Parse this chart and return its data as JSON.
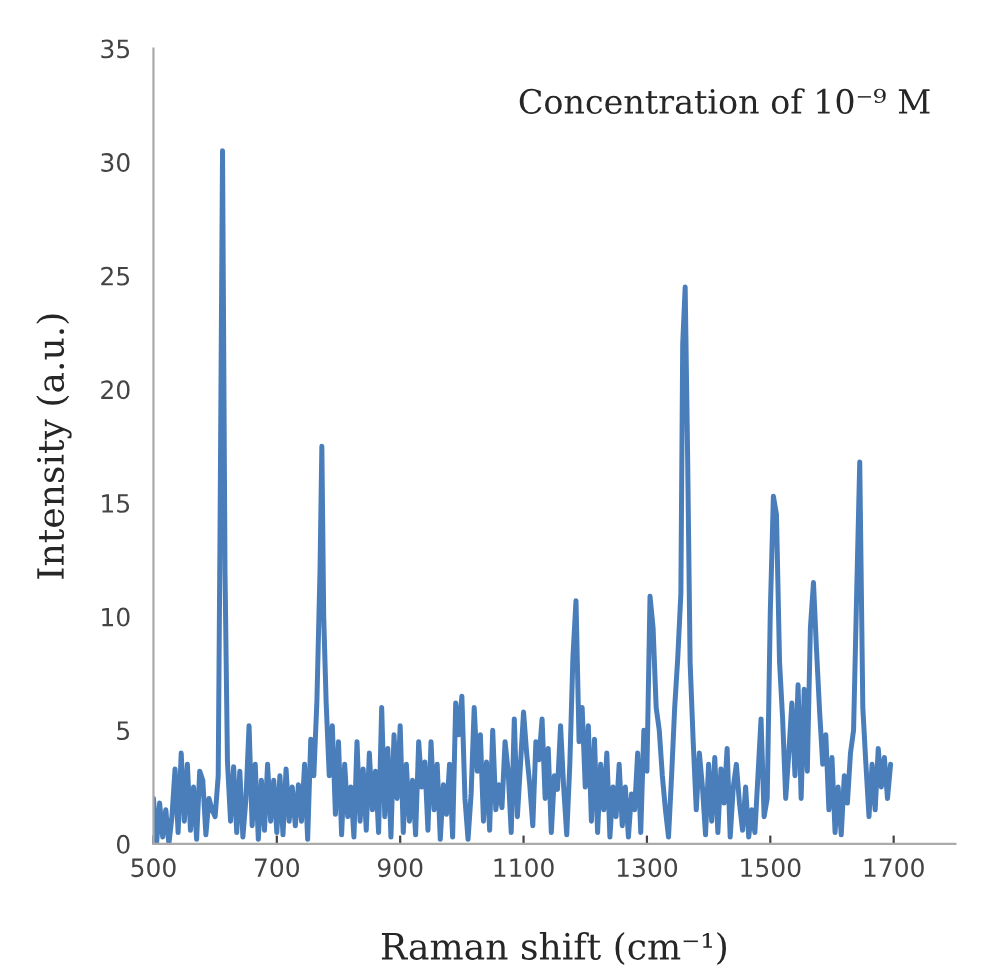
{
  "chart_data": {
    "type": "line",
    "xlabel": "Raman shift (cm⁻¹)",
    "ylabel": "Intensity (a.u.)",
    "annotations": [
      "Concentration of 10⁻⁹ M"
    ],
    "xlim": [
      500,
      1800
    ],
    "xticks": [
      500,
      700,
      900,
      1100,
      1300,
      1500,
      1700
    ],
    "ylim": [
      0,
      35
    ],
    "yticks": [
      0,
      5,
      10,
      15,
      20,
      25,
      30,
      35
    ],
    "grid": false,
    "legend": false,
    "marker": "none",
    "line_style": "solid",
    "series": [
      {
        "color": "#4a7ebb",
        "x": [
          500,
          505,
          510,
          515,
          520,
          525,
          530,
          535,
          540,
          545,
          550,
          555,
          560,
          565,
          570,
          575,
          580,
          585,
          590,
          595,
          600,
          605,
          608,
          612,
          616,
          620,
          625,
          630,
          635,
          640,
          645,
          650,
          655,
          660,
          665,
          670,
          675,
          680,
          685,
          690,
          695,
          700,
          705,
          710,
          715,
          720,
          725,
          730,
          735,
          740,
          745,
          750,
          755,
          760,
          765,
          770,
          773,
          776,
          780,
          785,
          790,
          795,
          800,
          805,
          810,
          815,
          820,
          825,
          830,
          835,
          840,
          845,
          850,
          855,
          860,
          865,
          870,
          875,
          880,
          885,
          890,
          895,
          900,
          905,
          910,
          915,
          920,
          925,
          930,
          935,
          940,
          945,
          950,
          955,
          960,
          965,
          970,
          975,
          980,
          985,
          990,
          995,
          1000,
          1005,
          1010,
          1015,
          1020,
          1025,
          1030,
          1035,
          1040,
          1045,
          1050,
          1055,
          1060,
          1065,
          1070,
          1075,
          1080,
          1085,
          1090,
          1095,
          1100,
          1105,
          1110,
          1115,
          1120,
          1125,
          1130,
          1135,
          1140,
          1145,
          1150,
          1155,
          1160,
          1165,
          1170,
          1175,
          1180,
          1185,
          1190,
          1195,
          1200,
          1205,
          1210,
          1215,
          1220,
          1225,
          1230,
          1235,
          1240,
          1245,
          1250,
          1255,
          1260,
          1265,
          1270,
          1275,
          1280,
          1285,
          1290,
          1295,
          1300,
          1305,
          1310,
          1315,
          1320,
          1325,
          1330,
          1335,
          1340,
          1345,
          1350,
          1355,
          1358,
          1362,
          1366,
          1370,
          1375,
          1380,
          1385,
          1390,
          1395,
          1400,
          1405,
          1410,
          1415,
          1420,
          1425,
          1430,
          1435,
          1440,
          1445,
          1450,
          1455,
          1460,
          1465,
          1470,
          1475,
          1480,
          1485,
          1490,
          1495,
          1500,
          1505,
          1510,
          1515,
          1520,
          1525,
          1530,
          1535,
          1540,
          1545,
          1550,
          1555,
          1560,
          1565,
          1570,
          1575,
          1580,
          1585,
          1590,
          1595,
          1600,
          1605,
          1610,
          1615,
          1620,
          1625,
          1630,
          1635,
          1640,
          1645,
          1650,
          1655,
          1660,
          1665,
          1670,
          1675,
          1680,
          1685,
          1690,
          1695
        ],
        "values": [
          2,
          0,
          1.8,
          0.3,
          1.5,
          0,
          1.2,
          3.3,
          0.5,
          4,
          1,
          3.5,
          0.6,
          2.5,
          0.2,
          3.2,
          2.8,
          0.4,
          2,
          1.5,
          1.2,
          3,
          14,
          30.5,
          12,
          3.6,
          1,
          3.4,
          0.5,
          3.2,
          0.3,
          2,
          5.2,
          0.8,
          3.5,
          0.2,
          2.8,
          0.6,
          3.5,
          1,
          2.8,
          0.5,
          3,
          0.4,
          3.3,
          1,
          2.5,
          0.8,
          2.6,
          1,
          3.5,
          0.2,
          4.6,
          3,
          6.3,
          12,
          17.5,
          10,
          6.2,
          3,
          5.2,
          1.3,
          4.5,
          0.4,
          3.5,
          1.2,
          2.5,
          0.3,
          4.5,
          1,
          3.3,
          0.6,
          4,
          1.5,
          3.2,
          0.5,
          6,
          1.2,
          4.2,
          0.3,
          4.8,
          2,
          5.2,
          0.5,
          3.5,
          1,
          2.8,
          0.4,
          4.5,
          2.5,
          3.6,
          0.6,
          4.5,
          1.5,
          3.5,
          0.2,
          2.6,
          1.3,
          3.5,
          0.3,
          6.2,
          4.8,
          6.5,
          2,
          0.2,
          2.2,
          6,
          3.2,
          4.8,
          1,
          3.6,
          0.6,
          5,
          1.5,
          2.6,
          1.6,
          4.5,
          3.2,
          0.5,
          5.5,
          1.2,
          3.5,
          5.8,
          4,
          2.6,
          0.8,
          4.5,
          3.7,
          5.5,
          2,
          4.2,
          0.5,
          3,
          2.4,
          5.2,
          2.5,
          0.4,
          3.5,
          8.2,
          10.7,
          4.5,
          6,
          2.5,
          5.2,
          1,
          4.6,
          0.5,
          3.5,
          1.5,
          4,
          0.3,
          2.5,
          1.2,
          3.5,
          0.8,
          2.5,
          0.3,
          2.2,
          1.5,
          4,
          0.5,
          5,
          3.2,
          10.9,
          9.5,
          6,
          5,
          3,
          1.5,
          0.3,
          3,
          6,
          8.2,
          11,
          22,
          24.5,
          17,
          8,
          4.5,
          1.5,
          4,
          2.5,
          0.4,
          3.5,
          1,
          3.8,
          0.5,
          3.3,
          1.8,
          4.2,
          0.3,
          2.5,
          3.5,
          1.8,
          0.6,
          2.5,
          0.3,
          1.5,
          0.5,
          3,
          5.5,
          1.2,
          2,
          10.2,
          15.3,
          14.5,
          8,
          5.5,
          2,
          4,
          6.2,
          3,
          7,
          2,
          6.8,
          3.2,
          9.5,
          11.5,
          8.5,
          5.8,
          3.5,
          4.8,
          1.5,
          3.8,
          0.5,
          2.5,
          0.4,
          3,
          1.8,
          4,
          5,
          11,
          16.8,
          6,
          3.5,
          1.2,
          3.5,
          1.5,
          4.2,
          2.5,
          3.8,
          2,
          3.5
        ]
      }
    ]
  }
}
